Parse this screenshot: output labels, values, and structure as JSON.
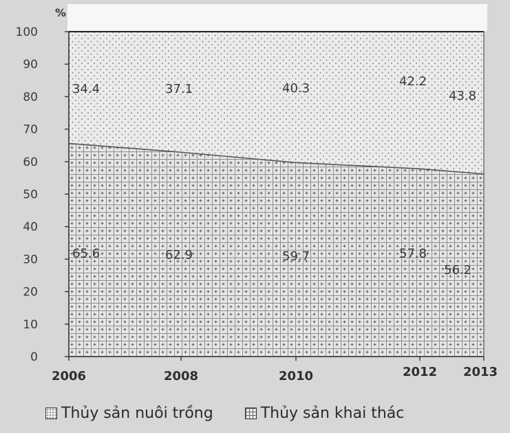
{
  "chart_data": {
    "type": "area",
    "stacked": true,
    "percent": true,
    "x": [
      "2006",
      "2008",
      "2010",
      "2012",
      "2013"
    ],
    "series": [
      {
        "name": "Thủy sản khai thác",
        "values": [
          65.6,
          62.9,
          59.7,
          57.8,
          56.2
        ],
        "pattern": "grid"
      },
      {
        "name": "Thủy sản nuôi trồng",
        "values": [
          34.4,
          37.1,
          40.3,
          42.2,
          43.8
        ],
        "pattern": "dots"
      }
    ],
    "y_unit": "%",
    "ylim": [
      0,
      100
    ],
    "yticks": [
      0,
      10,
      20,
      30,
      40,
      50,
      60,
      70,
      80,
      90,
      100
    ],
    "legend_position": "bottom",
    "colors": {
      "background": "#d8d6d7",
      "fill": "#eceaea",
      "line": "#333333",
      "pattern": "#6e6e6e"
    }
  },
  "legend": [
    {
      "label": "Thủy sản nuôi trồng",
      "pattern": "dots"
    },
    {
      "label": "Thủy sản khai thác",
      "pattern": "grid"
    }
  ]
}
